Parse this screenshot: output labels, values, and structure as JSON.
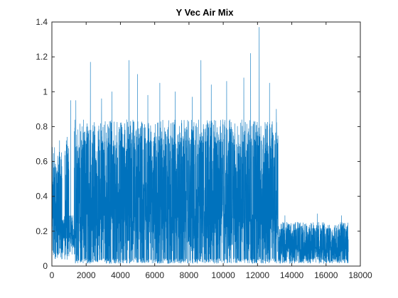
{
  "figure": {
    "background": "#ffffff"
  },
  "chart_data": {
    "type": "line",
    "title": "Y Vec Air Mix",
    "xlabel": "",
    "ylabel": "",
    "xlim": [
      0,
      18000
    ],
    "ylim": [
      0,
      1.4
    ],
    "x_ticks": [
      0,
      2000,
      4000,
      6000,
      8000,
      10000,
      12000,
      14000,
      16000,
      18000
    ],
    "y_ticks": [
      0,
      0.2,
      0.4,
      0.6,
      0.8,
      1,
      1.2,
      1.4
    ],
    "x_tick_labels": [
      "0",
      "2000",
      "4000",
      "6000",
      "8000",
      "10000",
      "12000",
      "14000",
      "16000",
      "18000"
    ],
    "y_tick_labels": [
      "0",
      "0.2",
      "0.4",
      "0.6",
      "0.8",
      "1",
      "1.2",
      "1.4"
    ],
    "grid": false,
    "box": true,
    "line_color": "#0072BD",
    "axis_color": "#262626",
    "n_points": 17300,
    "series": [
      {
        "segments": [
          {
            "x_start": 0,
            "x_end": 600,
            "low": 0.07,
            "high": 0.65
          },
          {
            "x_start": 600,
            "x_end": 750,
            "low": 0.12,
            "high": 0.28
          },
          {
            "x_start": 750,
            "x_end": 1000,
            "low": 0.05,
            "high": 0.7
          },
          {
            "x_start": 1000,
            "x_end": 1300,
            "low": 0.12,
            "high": 0.28
          },
          {
            "x_start": 1300,
            "x_end": 13200,
            "low": 0.03,
            "high": 0.8
          },
          {
            "x_start": 13200,
            "x_end": 17300,
            "low": 0.03,
            "high": 0.24
          }
        ],
        "peaks": [
          {
            "x": 450,
            "y": 0.72
          },
          {
            "x": 900,
            "y": 0.74
          },
          {
            "x": 1100,
            "y": 0.95
          },
          {
            "x": 1400,
            "y": 0.95
          },
          {
            "x": 2250,
            "y": 1.17
          },
          {
            "x": 2900,
            "y": 0.96
          },
          {
            "x": 3500,
            "y": 1.0
          },
          {
            "x": 4500,
            "y": 1.18
          },
          {
            "x": 5000,
            "y": 1.1
          },
          {
            "x": 5600,
            "y": 0.98
          },
          {
            "x": 6300,
            "y": 1.05
          },
          {
            "x": 7200,
            "y": 1.0
          },
          {
            "x": 8200,
            "y": 0.97
          },
          {
            "x": 8700,
            "y": 1.18
          },
          {
            "x": 9300,
            "y": 1.04
          },
          {
            "x": 10200,
            "y": 1.06
          },
          {
            "x": 11200,
            "y": 1.08
          },
          {
            "x": 11600,
            "y": 1.22
          },
          {
            "x": 12100,
            "y": 1.37
          },
          {
            "x": 12700,
            "y": 1.05
          },
          {
            "x": 13100,
            "y": 0.9
          },
          {
            "x": 13600,
            "y": 0.29
          },
          {
            "x": 15500,
            "y": 0.3
          },
          {
            "x": 16900,
            "y": 0.29
          }
        ]
      }
    ]
  }
}
